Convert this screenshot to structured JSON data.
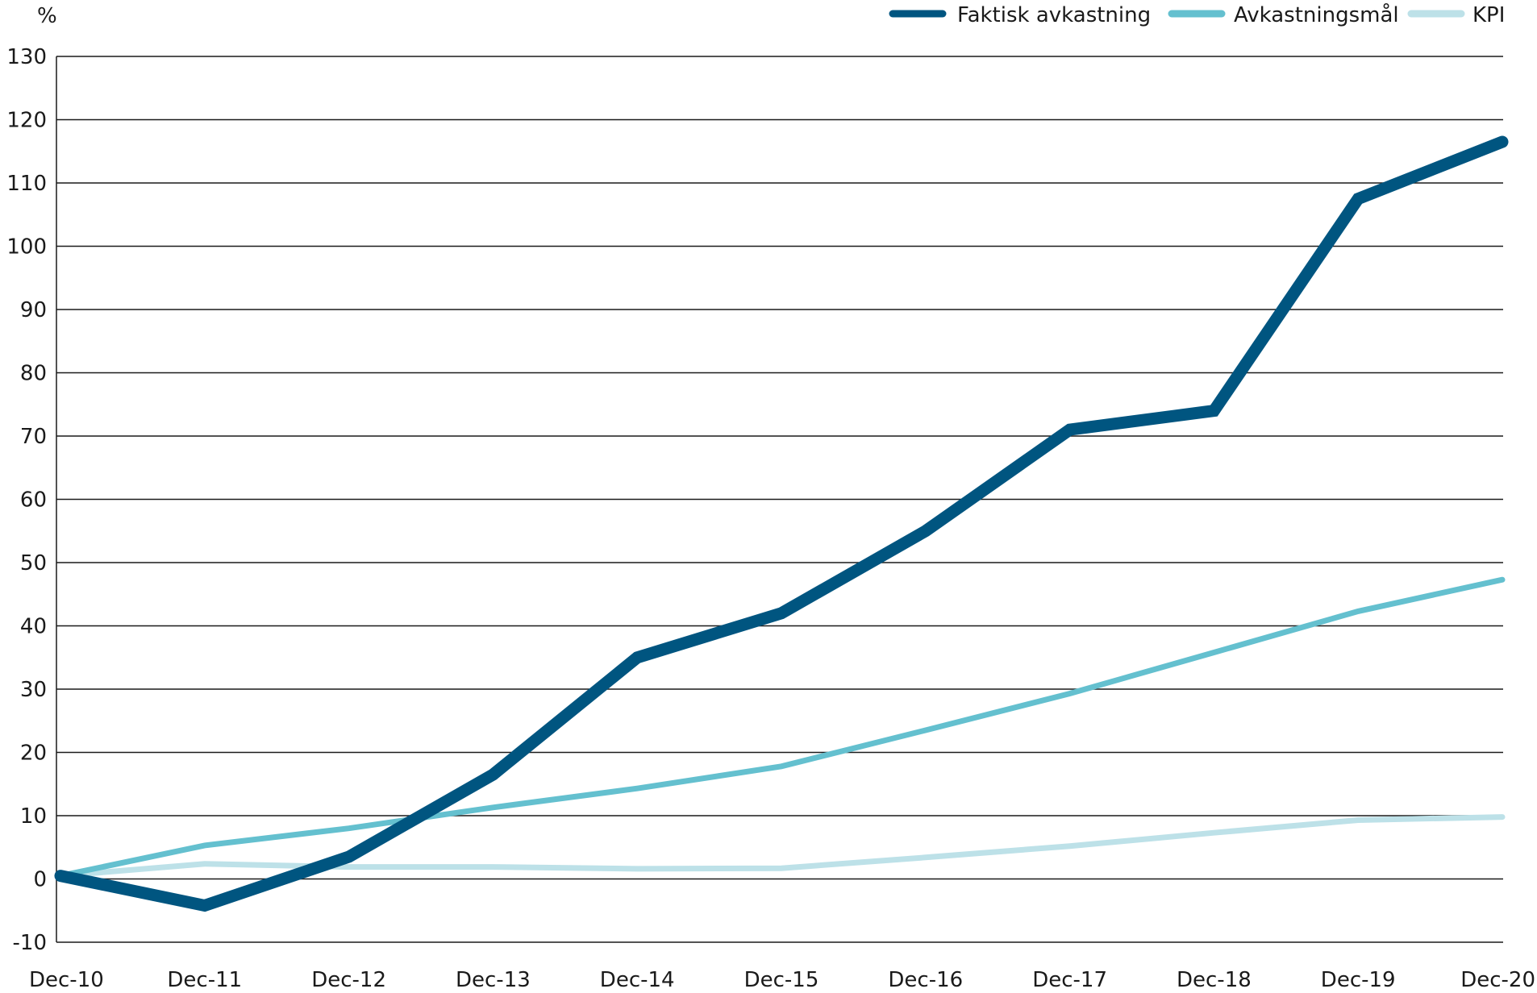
{
  "chart_data": {
    "type": "line",
    "ylabel": "%",
    "xlabel": "",
    "ylim": [
      -10,
      130
    ],
    "yticks": [
      -10,
      0,
      10,
      20,
      30,
      40,
      50,
      60,
      70,
      80,
      90,
      100,
      110,
      120,
      130
    ],
    "categories": [
      "Dec-10",
      "Dec-11",
      "Dec-12",
      "Dec-13",
      "Dec-14",
      "Dec-15",
      "Dec-16",
      "Dec-17",
      "Dec-18",
      "Dec-19",
      "Dec-20"
    ],
    "grid": true,
    "legend_position": "top-right",
    "series": [
      {
        "name": "Faktisk avkastning",
        "color": "#005580",
        "values": [
          0.5,
          -4.2,
          3.5,
          16.5,
          35,
          42,
          55,
          71,
          74,
          107.5,
          116.5
        ]
      },
      {
        "name": "Avkastningsmål",
        "color": "#64c0cf",
        "values": [
          0.5,
          5.3,
          8,
          11.3,
          14.3,
          17.8,
          23.5,
          29.3,
          35.8,
          42.3,
          47.3
        ]
      },
      {
        "name": "KPI",
        "color": "#bde1e8",
        "values": [
          0.5,
          2.4,
          1.9,
          1.9,
          1.6,
          1.7,
          3.4,
          5.2,
          7.3,
          9.3,
          9.8
        ]
      }
    ]
  }
}
